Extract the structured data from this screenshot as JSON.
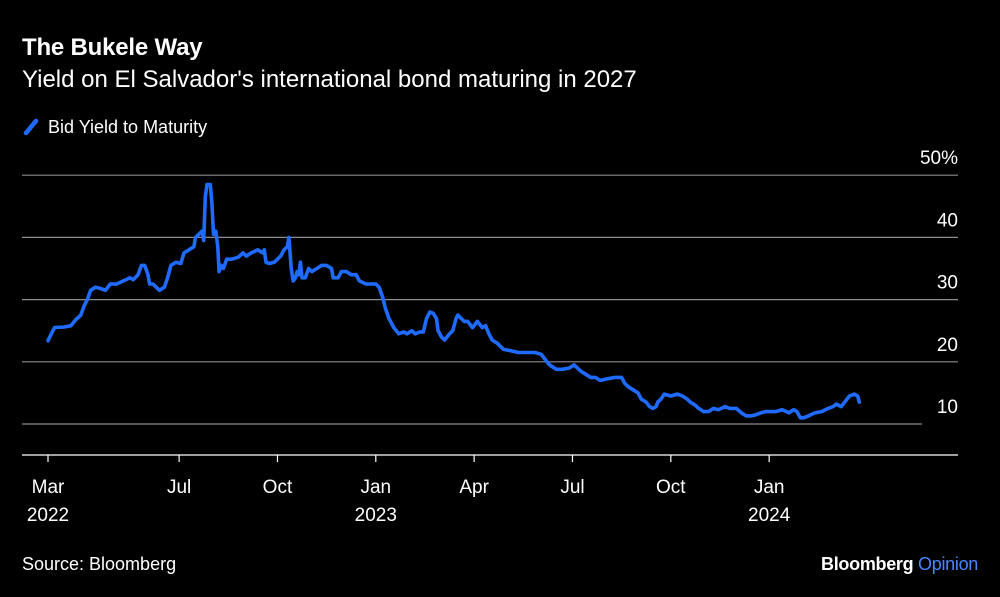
{
  "header": {
    "title": "The Bukele Way",
    "subtitle": "Yield on El Salvador's international bond maturing in 2027"
  },
  "footer": {
    "source": "Source: Bloomberg",
    "brand_name": "Bloomberg",
    "brand_sub": "Opinion"
  },
  "colors": {
    "background": "#000000",
    "line": "#1f6bff",
    "grid": "#8c8c8c",
    "text": "#ffffff",
    "brand_accent": "#4a86ff"
  },
  "chart_data": {
    "type": "line",
    "title": "The Bukele Way",
    "subtitle": "Yield on El Salvador's international bond maturing in 2027",
    "xlabel": "",
    "ylabel": "",
    "ylim": [
      5,
      50
    ],
    "y_ticks": [
      10,
      20,
      30,
      40,
      50
    ],
    "y_tick_labels": [
      "10",
      "20",
      "30",
      "40",
      "50%"
    ],
    "x_range": [
      0,
      27.1
    ],
    "x_ticks": [
      {
        "pos": 0,
        "label": "Mar",
        "year": "2022"
      },
      {
        "pos": 4,
        "label": "Jul",
        "year": ""
      },
      {
        "pos": 7,
        "label": "Oct",
        "year": ""
      },
      {
        "pos": 10,
        "label": "Jan",
        "year": "2023"
      },
      {
        "pos": 13,
        "label": "Apr",
        "year": ""
      },
      {
        "pos": 16,
        "label": "Jul",
        "year": ""
      },
      {
        "pos": 19,
        "label": "Oct",
        "year": ""
      },
      {
        "pos": 22,
        "label": "Jan",
        "year": "2024"
      }
    ],
    "grid": true,
    "legend": "top-left",
    "series": [
      {
        "name": "Bid Yield to Maturity",
        "points": [
          [
            0.0,
            23.4
          ],
          [
            0.1,
            24.5
          ],
          [
            0.2,
            25.5
          ],
          [
            0.5,
            25.6
          ],
          [
            0.7,
            25.8
          ],
          [
            0.85,
            26.8
          ],
          [
            1.0,
            27.5
          ],
          [
            1.1,
            29.0
          ],
          [
            1.2,
            30.0
          ],
          [
            1.3,
            31.5
          ],
          [
            1.45,
            32.0
          ],
          [
            1.6,
            31.8
          ],
          [
            1.75,
            31.5
          ],
          [
            1.9,
            32.5
          ],
          [
            2.1,
            32.5
          ],
          [
            2.3,
            33.0
          ],
          [
            2.5,
            33.5
          ],
          [
            2.6,
            33.2
          ],
          [
            2.75,
            34.0
          ],
          [
            2.85,
            35.5
          ],
          [
            2.95,
            35.5
          ],
          [
            3.05,
            34.0
          ],
          [
            3.1,
            32.5
          ],
          [
            3.2,
            32.5
          ],
          [
            3.3,
            32.0
          ],
          [
            3.4,
            31.5
          ],
          [
            3.55,
            32.0
          ],
          [
            3.65,
            33.5
          ],
          [
            3.75,
            35.5
          ],
          [
            3.9,
            36.0
          ],
          [
            4.05,
            35.8
          ],
          [
            4.15,
            37.5
          ],
          [
            4.3,
            38.0
          ],
          [
            4.45,
            38.5
          ],
          [
            4.5,
            40.0
          ],
          [
            4.6,
            40.5
          ],
          [
            4.7,
            41.0
          ],
          [
            4.75,
            39.5
          ],
          [
            4.8,
            46.5
          ],
          [
            4.85,
            48.5
          ],
          [
            4.95,
            48.5
          ],
          [
            5.0,
            45.5
          ],
          [
            5.05,
            40.5
          ],
          [
            5.12,
            41.0
          ],
          [
            5.18,
            38.5
          ],
          [
            5.22,
            34.5
          ],
          [
            5.28,
            35.5
          ],
          [
            5.35,
            35.0
          ],
          [
            5.45,
            36.5
          ],
          [
            5.6,
            36.5
          ],
          [
            5.8,
            36.8
          ],
          [
            5.95,
            37.5
          ],
          [
            6.05,
            37.0
          ],
          [
            6.2,
            37.5
          ],
          [
            6.4,
            38.0
          ],
          [
            6.55,
            37.5
          ],
          [
            6.6,
            38.0
          ],
          [
            6.65,
            36.0
          ],
          [
            6.75,
            35.8
          ],
          [
            6.9,
            36.0
          ],
          [
            7.0,
            36.5
          ],
          [
            7.1,
            37.0
          ],
          [
            7.2,
            38.0
          ],
          [
            7.3,
            38.5
          ],
          [
            7.35,
            40.0
          ],
          [
            7.42,
            35.0
          ],
          [
            7.48,
            33.0
          ],
          [
            7.55,
            33.5
          ],
          [
            7.6,
            34.5
          ],
          [
            7.65,
            34.0
          ],
          [
            7.7,
            36.0
          ],
          [
            7.75,
            33.5
          ],
          [
            7.85,
            33.5
          ],
          [
            7.95,
            35.0
          ],
          [
            8.05,
            34.5
          ],
          [
            8.2,
            35.0
          ],
          [
            8.35,
            35.5
          ],
          [
            8.5,
            35.5
          ],
          [
            8.65,
            35.0
          ],
          [
            8.7,
            33.5
          ],
          [
            8.85,
            33.5
          ],
          [
            8.95,
            34.5
          ],
          [
            9.1,
            34.5
          ],
          [
            9.25,
            34.0
          ],
          [
            9.4,
            34.0
          ],
          [
            9.5,
            33.0
          ],
          [
            9.7,
            32.5
          ],
          [
            9.8,
            32.5
          ],
          [
            9.9,
            32.5
          ],
          [
            10.0,
            32.5
          ],
          [
            10.1,
            32.0
          ],
          [
            10.2,
            30.5
          ],
          [
            10.3,
            28.5
          ],
          [
            10.4,
            27.0
          ],
          [
            10.55,
            25.5
          ],
          [
            10.7,
            24.5
          ],
          [
            10.85,
            24.8
          ],
          [
            10.95,
            24.5
          ],
          [
            11.1,
            25.0
          ],
          [
            11.2,
            24.5
          ],
          [
            11.35,
            24.8
          ],
          [
            11.45,
            24.8
          ],
          [
            11.55,
            27.0
          ],
          [
            11.65,
            28.0
          ],
          [
            11.75,
            27.8
          ],
          [
            11.85,
            27.0
          ],
          [
            11.9,
            25.0
          ],
          [
            12.0,
            24.0
          ],
          [
            12.1,
            23.5
          ],
          [
            12.25,
            24.5
          ],
          [
            12.35,
            25.0
          ],
          [
            12.45,
            27.0
          ],
          [
            12.5,
            27.5
          ],
          [
            12.6,
            27.0
          ],
          [
            12.7,
            26.5
          ],
          [
            12.8,
            26.5
          ],
          [
            12.95,
            25.5
          ],
          [
            13.1,
            26.5
          ],
          [
            13.25,
            25.5
          ],
          [
            13.35,
            25.8
          ],
          [
            13.45,
            24.5
          ],
          [
            13.55,
            23.5
          ],
          [
            13.7,
            23.0
          ],
          [
            13.9,
            22.0
          ],
          [
            14.1,
            21.8
          ],
          [
            14.35,
            21.5
          ],
          [
            14.6,
            21.5
          ],
          [
            14.85,
            21.5
          ],
          [
            15.05,
            21.2
          ],
          [
            15.15,
            20.5
          ],
          [
            15.3,
            19.5
          ],
          [
            15.5,
            18.8
          ],
          [
            15.7,
            18.8
          ],
          [
            15.9,
            19.0
          ],
          [
            16.05,
            19.5
          ],
          [
            16.15,
            19.0
          ],
          [
            16.25,
            18.5
          ],
          [
            16.4,
            18.0
          ],
          [
            16.55,
            17.5
          ],
          [
            16.7,
            17.5
          ],
          [
            16.85,
            17.0
          ],
          [
            17.0,
            17.2
          ],
          [
            17.3,
            17.5
          ],
          [
            17.5,
            17.5
          ],
          [
            17.6,
            16.5
          ],
          [
            17.7,
            16.0
          ],
          [
            17.85,
            15.5
          ],
          [
            18.0,
            15.0
          ],
          [
            18.1,
            14.0
          ],
          [
            18.25,
            13.5
          ],
          [
            18.35,
            12.8
          ],
          [
            18.45,
            12.5
          ],
          [
            18.55,
            12.8
          ],
          [
            18.6,
            13.5
          ],
          [
            18.7,
            14.0
          ],
          [
            18.8,
            14.8
          ],
          [
            19.0,
            14.5
          ],
          [
            19.2,
            14.8
          ],
          [
            19.35,
            14.5
          ],
          [
            19.5,
            14.0
          ],
          [
            19.6,
            13.5
          ],
          [
            19.75,
            13.0
          ],
          [
            19.85,
            12.5
          ],
          [
            20.0,
            12.0
          ],
          [
            20.15,
            12.0
          ],
          [
            20.3,
            12.5
          ],
          [
            20.45,
            12.3
          ],
          [
            20.65,
            12.8
          ],
          [
            20.8,
            12.5
          ],
          [
            21.0,
            12.5
          ],
          [
            21.15,
            11.8
          ],
          [
            21.3,
            11.3
          ],
          [
            21.45,
            11.3
          ],
          [
            21.6,
            11.5
          ],
          [
            21.75,
            11.8
          ],
          [
            21.9,
            12.0
          ],
          [
            22.0,
            12.0
          ],
          [
            22.2,
            12.0
          ],
          [
            22.4,
            12.3
          ],
          [
            22.6,
            11.8
          ],
          [
            22.75,
            12.3
          ],
          [
            22.85,
            12.0
          ],
          [
            22.95,
            11.0
          ],
          [
            23.05,
            11.0
          ],
          [
            23.2,
            11.3
          ],
          [
            23.4,
            11.8
          ],
          [
            23.6,
            12.0
          ],
          [
            23.8,
            12.5
          ],
          [
            23.95,
            12.8
          ],
          [
            24.05,
            13.2
          ],
          [
            24.2,
            12.8
          ],
          [
            24.3,
            13.5
          ],
          [
            24.45,
            14.5
          ],
          [
            24.6,
            14.8
          ],
          [
            24.7,
            14.5
          ],
          [
            24.75,
            13.5
          ]
        ]
      }
    ]
  }
}
